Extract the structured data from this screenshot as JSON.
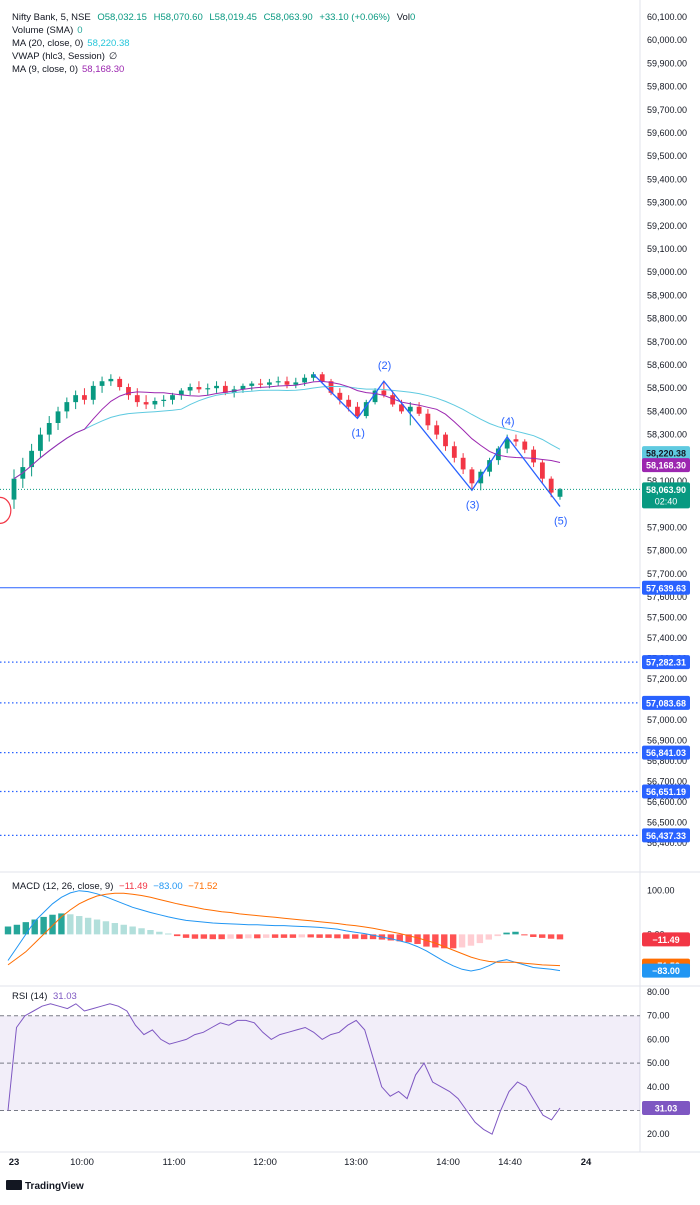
{
  "header": {
    "symbol": "Nifty Bank, 5, NSE",
    "open": "O58,032.15",
    "high": "H58,070.60",
    "low": "L58,019.45",
    "close": "C58,063.90",
    "change": "+33.10 (+0.06%)",
    "vol": "Vol",
    "vol_value": "0"
  },
  "indicators": [
    {
      "label": "Volume (SMA)",
      "value": "0",
      "color": "#26a69a"
    },
    {
      "label": "MA (20, close, 0)",
      "value": "58,220.38",
      "color": "#26c6da"
    },
    {
      "label": "VWAP (hlc3, Session)",
      "value": "∅",
      "color": "#131722"
    },
    {
      "label": "MA (9, close, 0)",
      "value": "58,168.30",
      "color": "#9c27b0"
    }
  ],
  "macd_legend": {
    "label": "MACD (12, 26, close, 9)",
    "hist": "−11.49",
    "macd": "−83.00",
    "signal": "−71.52"
  },
  "rsi_legend": {
    "label": "RSI (14)",
    "value": "31.03"
  },
  "footer": {
    "brand": "TradingView"
  },
  "colors": {
    "up": "#089981",
    "down": "#f23645",
    "ma20": "#5fcae0",
    "ma9": "#9c27b0",
    "pattern": "#2962ff",
    "macd": "#2196f3",
    "signal": "#ff6d00",
    "rsi": "#7e57c2"
  },
  "chart_data": [
    {
      "type": "line",
      "title": "Nifty Bank, 5, NSE",
      "price_axis": {
        "range": [
          57600,
          60100
        ],
        "ticks": [
          "60,100.00",
          "60,000.00",
          "59,900.00",
          "59,800.00",
          "59,700.00",
          "59,600.00",
          "59,500.00",
          "59,400.00",
          "59,300.00",
          "59,200.00",
          "59,100.00",
          "59,000.00",
          "58,900.00",
          "58,800.00",
          "58,700.00",
          "58,600.00",
          "58,500.00",
          "58,400.00",
          "58,300.00",
          "58,200.00",
          "58,100.00",
          "58,000.00",
          "57,900.00",
          "57,800.00",
          "57,700.00",
          "57,600.00"
        ],
        "lower_ticks": [
          "57,500.00",
          "57,400.00",
          "57,300.00",
          "57,200.00",
          "57,100.00",
          "57,000.00",
          "56,900.00",
          "56,800.00",
          "56,700.00",
          "56,600.00",
          "56,500.00",
          "56,400.00"
        ]
      },
      "time_axis": {
        "labels": [
          "23",
          "10:00",
          "11:00",
          "12:00",
          "13:00",
          "14:00",
          "14:40",
          "24"
        ]
      },
      "candles": [
        [
          58020,
          58150,
          57980,
          58110
        ],
        [
          58110,
          58200,
          58070,
          58160
        ],
        [
          58160,
          58260,
          58120,
          58230
        ],
        [
          58230,
          58330,
          58200,
          58300
        ],
        [
          58300,
          58380,
          58270,
          58350
        ],
        [
          58350,
          58420,
          58320,
          58400
        ],
        [
          58400,
          58460,
          58370,
          58440
        ],
        [
          58440,
          58490,
          58410,
          58470
        ],
        [
          58470,
          58500,
          58430,
          58450
        ],
        [
          58450,
          58530,
          58430,
          58510
        ],
        [
          58510,
          58550,
          58480,
          58530
        ],
        [
          58530,
          58560,
          58510,
          58540
        ],
        [
          58540,
          58550,
          58490,
          58505
        ],
        [
          58505,
          58520,
          58450,
          58470
        ],
        [
          58470,
          58500,
          58420,
          58440
        ],
        [
          58440,
          58470,
          58410,
          58430
        ],
        [
          58430,
          58460,
          58410,
          58445
        ],
        [
          58445,
          58470,
          58420,
          58450
        ],
        [
          58450,
          58480,
          58430,
          58470
        ],
        [
          58470,
          58500,
          58450,
          58490
        ],
        [
          58490,
          58520,
          58470,
          58505
        ],
        [
          58505,
          58530,
          58480,
          58495
        ],
        [
          58495,
          58520,
          58470,
          58500
        ],
        [
          58500,
          58530,
          58480,
          58510
        ],
        [
          58510,
          58530,
          58470,
          58480
        ],
        [
          58480,
          58510,
          58460,
          58495
        ],
        [
          58495,
          58520,
          58480,
          58510
        ],
        [
          58510,
          58530,
          58490,
          58520
        ],
        [
          58520,
          58540,
          58500,
          58515
        ],
        [
          58515,
          58540,
          58500,
          58525
        ],
        [
          58525,
          58550,
          58510,
          58530
        ],
        [
          58530,
          58550,
          58500,
          58515
        ],
        [
          58515,
          58545,
          58500,
          58525
        ],
        [
          58525,
          58560,
          58510,
          58545
        ],
        [
          58545,
          58570,
          58530,
          58560
        ],
        [
          58560,
          58570,
          58520,
          58530
        ],
        [
          58530,
          58540,
          58470,
          58480
        ],
        [
          58480,
          58500,
          58430,
          58450
        ],
        [
          58450,
          58470,
          58400,
          58420
        ],
        [
          58420,
          58440,
          58370,
          58380
        ],
        [
          58380,
          58450,
          58370,
          58440
        ],
        [
          58440,
          58500,
          58430,
          58490
        ],
        [
          58490,
          58530,
          58460,
          58470
        ],
        [
          58470,
          58490,
          58420,
          58430
        ],
        [
          58430,
          58450,
          58390,
          58400
        ],
        [
          58400,
          58440,
          58340,
          58420
        ],
        [
          58420,
          58440,
          58380,
          58390
        ],
        [
          58390,
          58410,
          58320,
          58340
        ],
        [
          58340,
          58360,
          58280,
          58300
        ],
        [
          58300,
          58310,
          58230,
          58250
        ],
        [
          58250,
          58270,
          58180,
          58200
        ],
        [
          58200,
          58220,
          58130,
          58150
        ],
        [
          58150,
          58160,
          58060,
          58090
        ],
        [
          58090,
          58150,
          58060,
          58140
        ],
        [
          58140,
          58200,
          58120,
          58190
        ],
        [
          58190,
          58250,
          58170,
          58240
        ],
        [
          58240,
          58300,
          58220,
          58280
        ],
        [
          58280,
          58300,
          58250,
          58270
        ],
        [
          58270,
          58280,
          58220,
          58235
        ],
        [
          58235,
          58250,
          58160,
          58180
        ],
        [
          58180,
          58190,
          58090,
          58110
        ],
        [
          58110,
          58120,
          58030,
          58050
        ],
        [
          58032,
          58070,
          58019,
          58064
        ]
      ],
      "ma20_last": 58220.38,
      "ma9_last": 58168.3,
      "last_price": 58063.9,
      "countdown": "02:40",
      "wave_labels": [
        "(1)",
        "(2)",
        "(3)",
        "(4)",
        "(5)"
      ],
      "wave_points": [
        58370,
        58530,
        58060,
        58290,
        57990
      ],
      "horizontal_levels": [
        {
          "value": 57639.63,
          "label": "57,639.63",
          "style": "solid"
        },
        {
          "value": 57282.31,
          "label": "57,282.31",
          "style": "dotted"
        },
        {
          "value": 57083.68,
          "label": "57,083.68",
          "style": "dotted"
        },
        {
          "value": 56841.03,
          "label": "56,841.03",
          "style": "dotted"
        },
        {
          "value": 56651.19,
          "label": "56,651.19",
          "style": "dotted"
        },
        {
          "value": 56437.33,
          "label": "56,437.33",
          "style": "dotted"
        }
      ]
    },
    {
      "type": "bar",
      "title": "MACD (12, 26, close, 9)",
      "y_ticks": [
        "100.00",
        "0.00"
      ],
      "ylim": [
        -100,
        120
      ],
      "histogram": [
        18,
        22,
        28,
        34,
        40,
        45,
        48,
        46,
        42,
        38,
        34,
        30,
        26,
        22,
        18,
        14,
        10,
        6,
        2,
        -4,
        -8,
        -10,
        -10,
        -11,
        -11,
        -10,
        -10,
        -9,
        -9,
        -8,
        -8,
        -8,
        -8,
        -7,
        -7,
        -8,
        -8,
        -9,
        -10,
        -10,
        -11,
        -11,
        -12,
        -14,
        -16,
        -18,
        -22,
        -28,
        -30,
        -32,
        -32,
        -30,
        -26,
        -20,
        -12,
        -4,
        4,
        6,
        -2,
        -6,
        -8,
        -10,
        -11.49
      ],
      "macd_line": [
        -60,
        -30,
        0,
        30,
        50,
        70,
        85,
        95,
        100,
        98,
        93,
        86,
        78,
        70,
        62,
        56,
        50,
        45,
        40,
        36,
        32,
        30,
        28,
        26,
        25,
        24,
        23,
        22,
        22,
        21,
        20,
        20,
        19,
        18,
        17,
        16,
        14,
        12,
        8,
        5,
        2,
        -2,
        -6,
        -10,
        -15,
        -20,
        -28,
        -38,
        -50,
        -62,
        -72,
        -80,
        -84,
        -80,
        -72,
        -62,
        -58,
        -64,
        -70,
        -76,
        -78,
        -80,
        -83.0
      ],
      "signal_line": [
        -70,
        -55,
        -40,
        -20,
        0,
        20,
        40,
        56,
        70,
        80,
        88,
        92,
        94,
        94,
        92,
        89,
        85,
        80,
        75,
        70,
        66,
        62,
        58,
        55,
        52,
        50,
        47,
        45,
        43,
        41,
        39,
        37,
        35,
        33,
        31,
        29,
        27,
        25,
        22,
        20,
        17,
        14,
        10,
        6,
        2,
        -3,
        -8,
        -14,
        -20,
        -28,
        -36,
        -44,
        -52,
        -58,
        -62,
        -64,
        -64,
        -64,
        -66,
        -68,
        -70,
        -71,
        -71.52
      ]
    },
    {
      "type": "line",
      "title": "RSI (14)",
      "y_ticks": [
        "80.00",
        "70.00",
        "60.00",
        "50.00",
        "40.00",
        "30.00",
        "20.00"
      ],
      "ylim": [
        15,
        80
      ],
      "bands": [
        70,
        50,
        30
      ],
      "values": [
        30,
        65,
        70,
        72,
        74,
        75,
        74,
        73,
        75,
        72,
        73,
        74,
        75,
        74,
        72,
        66,
        62,
        64,
        60,
        58,
        59,
        60,
        62,
        63,
        65,
        67,
        66,
        68,
        68,
        67,
        63,
        60,
        62,
        63,
        64,
        65,
        63,
        60,
        62,
        63,
        66,
        68,
        64,
        52,
        40,
        36,
        38,
        35,
        45,
        50,
        42,
        40,
        38,
        35,
        30,
        25,
        22,
        20,
        30,
        38,
        42,
        40,
        34,
        28,
        26,
        31.03
      ]
    }
  ]
}
